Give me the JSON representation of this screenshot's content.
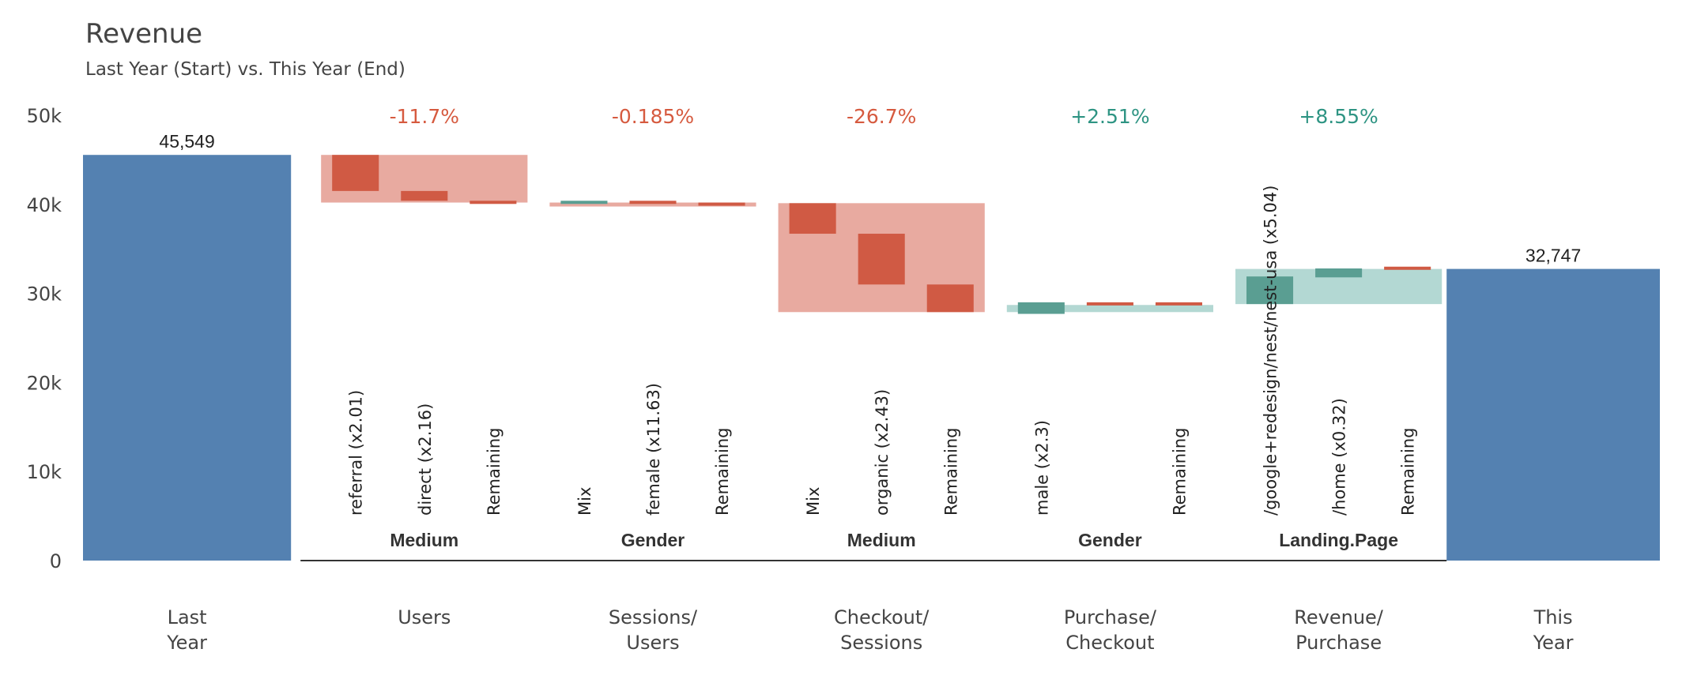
{
  "chart_data": {
    "type": "bar",
    "title": "Revenue",
    "subtitle": "Last Year (Start) vs. This Year (End)",
    "ylim": [
      0,
      50000
    ],
    "y_ticks": [
      {
        "value": 0,
        "label": "0"
      },
      {
        "value": 10000,
        "label": "10k"
      },
      {
        "value": 20000,
        "label": "20k"
      },
      {
        "value": 30000,
        "label": "30k"
      },
      {
        "value": 40000,
        "label": "40k"
      },
      {
        "value": 50000,
        "label": "50k"
      }
    ],
    "grid": false,
    "legend": "none",
    "colors": {
      "total": "#5481b1",
      "negative": "#d05a44",
      "negative_light": "#e8aaa0",
      "positive": "#5a9e92",
      "positive_light": "#b3d8d3",
      "axis": "#333333",
      "neg_text": "#d65a3f",
      "pos_text": "#2e9483"
    },
    "start": {
      "label": "Last\nYear",
      "value": 45549,
      "value_label": "45,549"
    },
    "end": {
      "label": "This\nYear",
      "value": 32747,
      "value_label": "32,747"
    },
    "steps": [
      {
        "label": "Users",
        "dimension": "Medium",
        "pct": "-11.7%",
        "from": 45549,
        "to": 40200,
        "segments": [
          {
            "label": "referral (x2.01)",
            "from": 45549,
            "to": 41500
          },
          {
            "label": "direct (x2.16)",
            "from": 41500,
            "to": 40400
          },
          {
            "label": "Remaining",
            "from": 40400,
            "to": 40200
          }
        ]
      },
      {
        "label": "Sessions/\nUsers",
        "dimension": "Gender",
        "pct": "-0.185%",
        "from": 40200,
        "to": 40130,
        "segments": [
          {
            "label": "Mix",
            "from": 40200,
            "to": 40400
          },
          {
            "label": "female (x11.63)",
            "from": 40400,
            "to": 40200
          },
          {
            "label": "Remaining",
            "from": 40200,
            "to": 39900
          }
        ]
      },
      {
        "label": "Checkout/\nSessions",
        "dimension": "Medium",
        "pct": "-26.7%",
        "from": 40130,
        "to": 27900,
        "segments": [
          {
            "label": "Mix",
            "from": 40130,
            "to": 36700
          },
          {
            "label": "organic (x2.43)",
            "from": 36700,
            "to": 31000
          },
          {
            "label": "Remaining",
            "from": 31000,
            "to": 27900
          }
        ]
      },
      {
        "label": "Purchase/\nCheckout",
        "dimension": "Gender",
        "pct": "+2.51%",
        "from": 27900,
        "to": 28700,
        "segments": [
          {
            "label": "male (x2.3)",
            "from": 27700,
            "to": 29000
          },
          {
            "label": "",
            "from": 29000,
            "to": 28700
          },
          {
            "label": "Remaining",
            "from": 29000,
            "to": 28700
          }
        ]
      },
      {
        "label": "Revenue/\nPurchase",
        "dimension": "Landing.Page",
        "pct": "+8.55%",
        "from": 28800,
        "to": 32747,
        "segments": [
          {
            "label": "/google+redesign/nest/nest-usa (x5.04)",
            "from": 28800,
            "to": 31900
          },
          {
            "label": "/home (x0.32)",
            "from": 31800,
            "to": 32800
          },
          {
            "label": "Remaining",
            "from": 33000,
            "to": 32700
          }
        ]
      }
    ]
  }
}
